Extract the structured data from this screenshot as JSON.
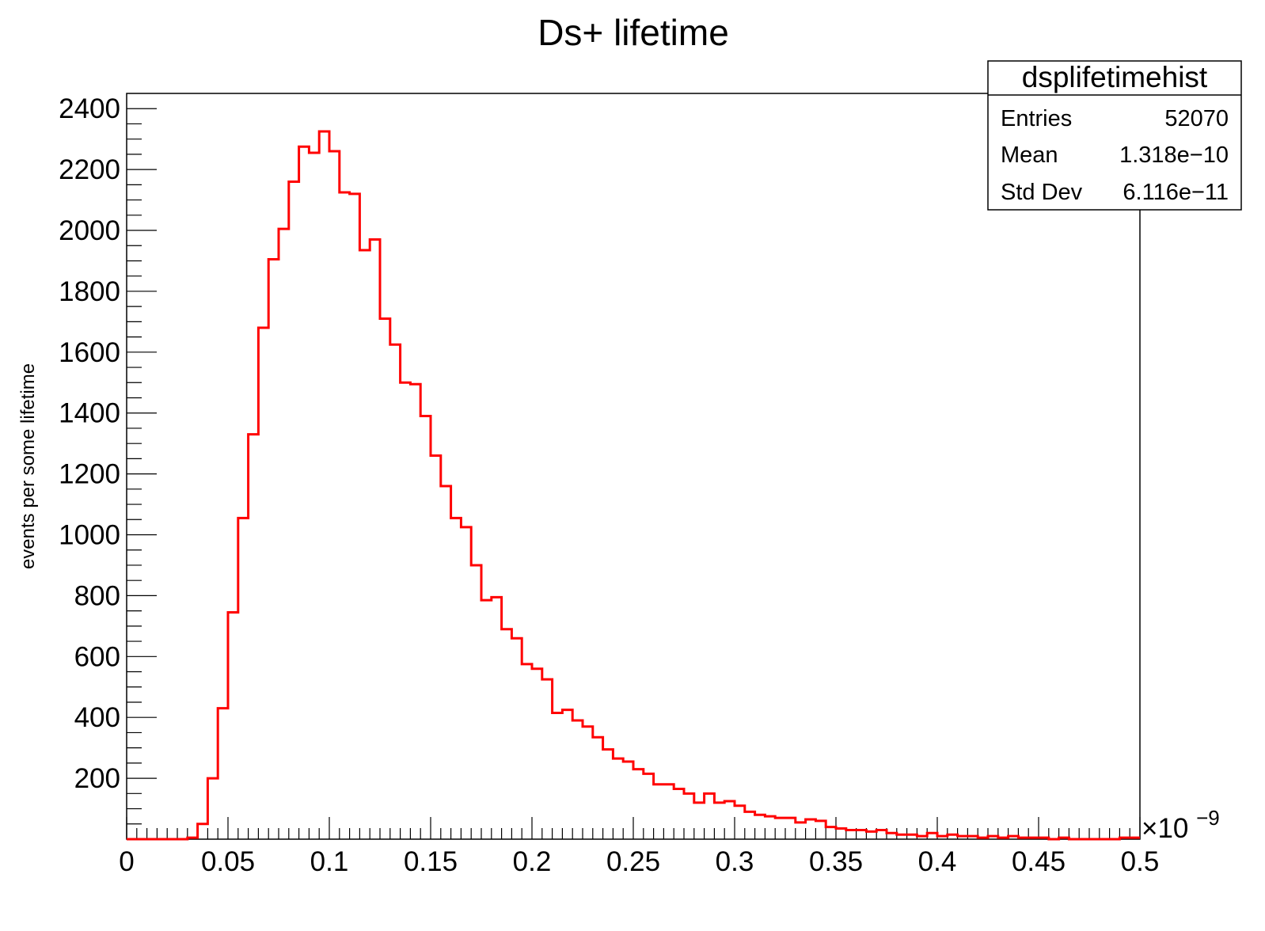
{
  "chart_data": {
    "type": "bar",
    "title": "Ds+ lifetime",
    "xlabel": "",
    "ylabel": "events per some lifetime",
    "xlim": [
      0,
      0.5
    ],
    "ylim": [
      0,
      2450
    ],
    "x_multiplier_label": "×10",
    "x_multiplier_exponent": "−9",
    "x_ticks": [
      "0",
      "0.05",
      "0.1",
      "0.15",
      "0.2",
      "0.25",
      "0.3",
      "0.35",
      "0.4",
      "0.45",
      "0.5"
    ],
    "y_ticks": [
      "200",
      "400",
      "600",
      "800",
      "1000",
      "1200",
      "1400",
      "1600",
      "1800",
      "2000",
      "2200",
      "2400"
    ],
    "grid": false,
    "legend": "none",
    "line_color": "#ff0000",
    "bin_width": 0.005,
    "values": [
      0,
      0,
      0,
      0,
      0,
      0,
      5,
      50,
      200,
      430,
      745,
      1055,
      1330,
      1680,
      1905,
      2005,
      2160,
      2275,
      2255,
      2325,
      2260,
      2125,
      2120,
      1935,
      1970,
      1710,
      1625,
      1500,
      1495,
      1390,
      1260,
      1160,
      1055,
      1025,
      900,
      785,
      795,
      690,
      660,
      575,
      560,
      525,
      415,
      425,
      390,
      370,
      335,
      295,
      265,
      255,
      230,
      215,
      180,
      180,
      165,
      150,
      120,
      150,
      120,
      125,
      110,
      90,
      80,
      75,
      70,
      70,
      55,
      65,
      60,
      40,
      35,
      30,
      30,
      25,
      30,
      20,
      15,
      15,
      10,
      20,
      10,
      15,
      10,
      10,
      5,
      10,
      5,
      10,
      5,
      5,
      5,
      0,
      5,
      0,
      0,
      0,
      0,
      0,
      5,
      5
    ]
  },
  "stats_box": {
    "title": "dsplifetimehist",
    "rows": [
      {
        "label": "Entries",
        "value": "52070"
      },
      {
        "label": "Mean",
        "value": "1.318e−10"
      },
      {
        "label": "Std Dev",
        "value": "6.116e−11"
      }
    ]
  }
}
